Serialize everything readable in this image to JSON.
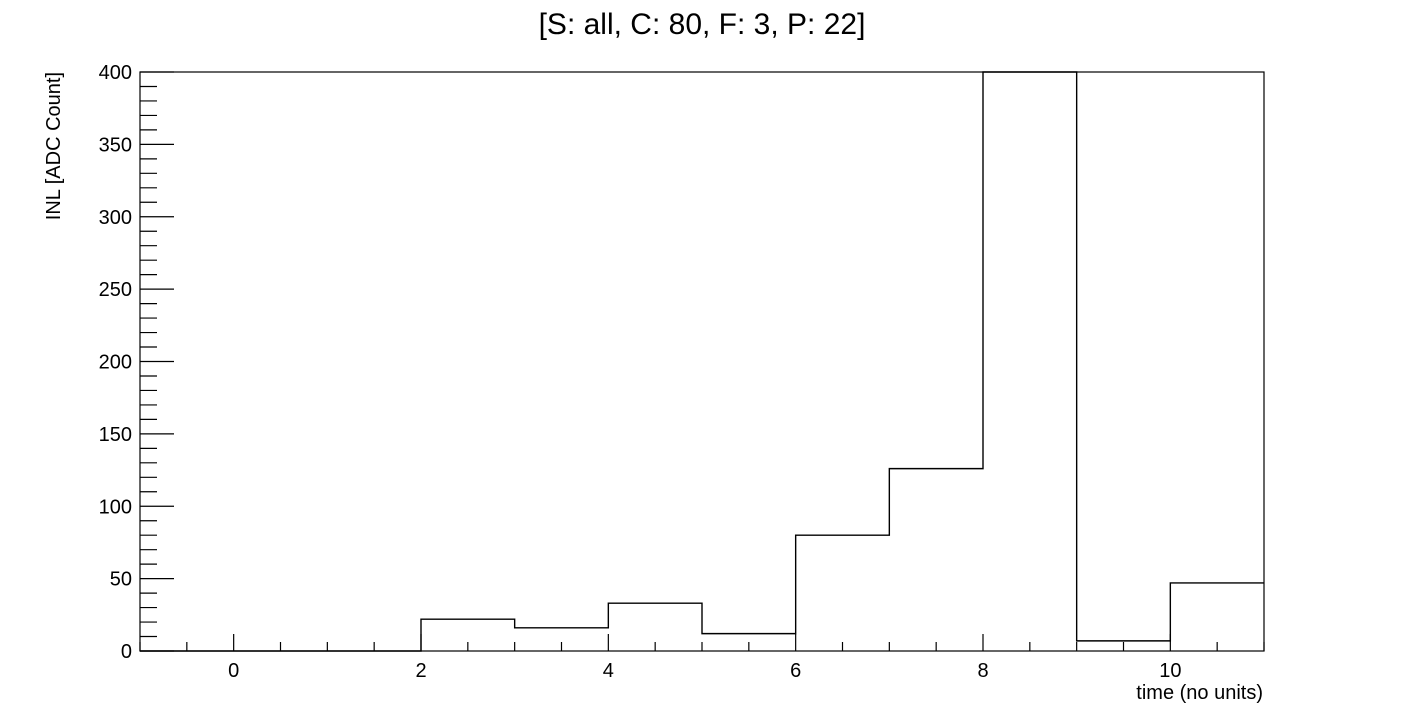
{
  "chart_data": {
    "type": "histogram",
    "title": "[S: all, C: 80, F: 3, P: 22]",
    "xlabel": "time (no units)",
    "ylabel": "INL [ADC Count]",
    "xlim": [
      -1,
      11
    ],
    "ylim": [
      0,
      400
    ],
    "x_ticks": [
      0,
      2,
      4,
      6,
      8,
      10
    ],
    "y_ticks": [
      0,
      50,
      100,
      150,
      200,
      250,
      300,
      350,
      400
    ],
    "bin_edges": [
      -1,
      0,
      1,
      2,
      3,
      4,
      5,
      6,
      7,
      8,
      9,
      10,
      11
    ],
    "values": [
      0,
      0,
      0,
      22,
      16,
      33,
      12,
      80,
      126,
      400,
      7,
      47
    ],
    "grid": false,
    "legend": "none"
  }
}
